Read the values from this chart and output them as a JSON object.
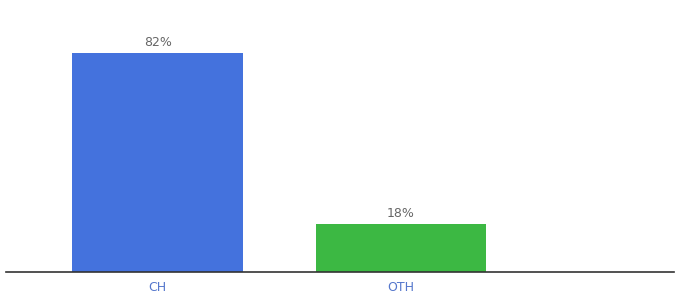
{
  "categories": [
    "CH",
    "OTH"
  ],
  "values": [
    82,
    18
  ],
  "bar_colors": [
    "#4472DD",
    "#3CB843"
  ],
  "labels": [
    "82%",
    "18%"
  ],
  "ylim": [
    0,
    100
  ],
  "background_color": "#ffffff",
  "label_fontsize": 9,
  "tick_fontsize": 9,
  "tick_color": "#5577cc",
  "label_color": "#666666",
  "bar_width": 0.28,
  "x_positions": [
    0.25,
    0.65
  ],
  "xlim": [
    0.0,
    1.1
  ]
}
